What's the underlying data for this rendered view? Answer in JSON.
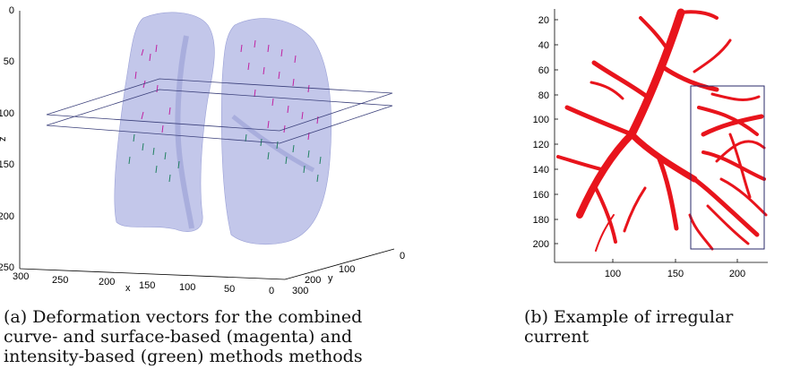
{
  "figure": {
    "panel_a": {
      "caption_lines": [
        "(a) Deformation vectors for the combined",
        "curve- and surface-based (magenta) and",
        "intensity-based (green) methods methods"
      ],
      "z_label": "z",
      "x_label": "x",
      "y_label": "y",
      "z_ticks": [
        "0",
        "50",
        "100",
        "150",
        "200",
        "250"
      ],
      "x_ticks": [
        "300",
        "250",
        "200",
        "150",
        "100",
        "50",
        "0"
      ],
      "y_ticks": [
        "0",
        "100",
        "200",
        "300"
      ],
      "colors": {
        "lung_fill": "#b8bde6",
        "vector_magenta": "#c020a0",
        "vector_green": "#208060",
        "plane": "#3a3f7a"
      }
    },
    "panel_b": {
      "caption": "(b) Example of irregular current",
      "y_ticks": [
        "20",
        "40",
        "60",
        "80",
        "100",
        "120",
        "140",
        "160",
        "180",
        "200"
      ],
      "x_ticks": [
        "100",
        "150",
        "200"
      ],
      "colors": {
        "vessel": "#e8141c",
        "roi_box": "#2a2a6a"
      }
    }
  }
}
